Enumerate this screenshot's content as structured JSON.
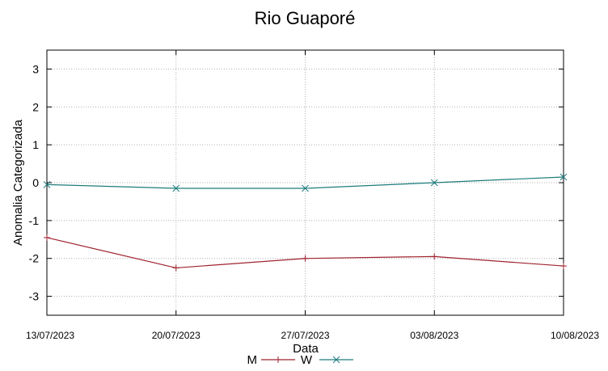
{
  "chart_data": {
    "type": "line",
    "title": "Rio Guaporé",
    "xlabel": "Data",
    "ylabel": "Anomalia Categorizada",
    "categories": [
      "13/07/2023",
      "20/07/2023",
      "27/07/2023",
      "03/08/2023",
      "10/08/2023"
    ],
    "ylim": [
      -3.5,
      3.5
    ],
    "yticks": [
      -3,
      -2,
      -1,
      0,
      1,
      2,
      3
    ],
    "grid": true,
    "legend_position": "bottom",
    "series": [
      {
        "name": "M",
        "color": "#a0222e",
        "marker": "plus",
        "values": [
          -1.45,
          -2.25,
          -2.0,
          -1.95,
          -2.2
        ]
      },
      {
        "name": "W",
        "color": "#1d7c7c",
        "marker": "x",
        "values": [
          -0.05,
          -0.15,
          -0.15,
          0.0,
          0.15
        ]
      }
    ]
  }
}
